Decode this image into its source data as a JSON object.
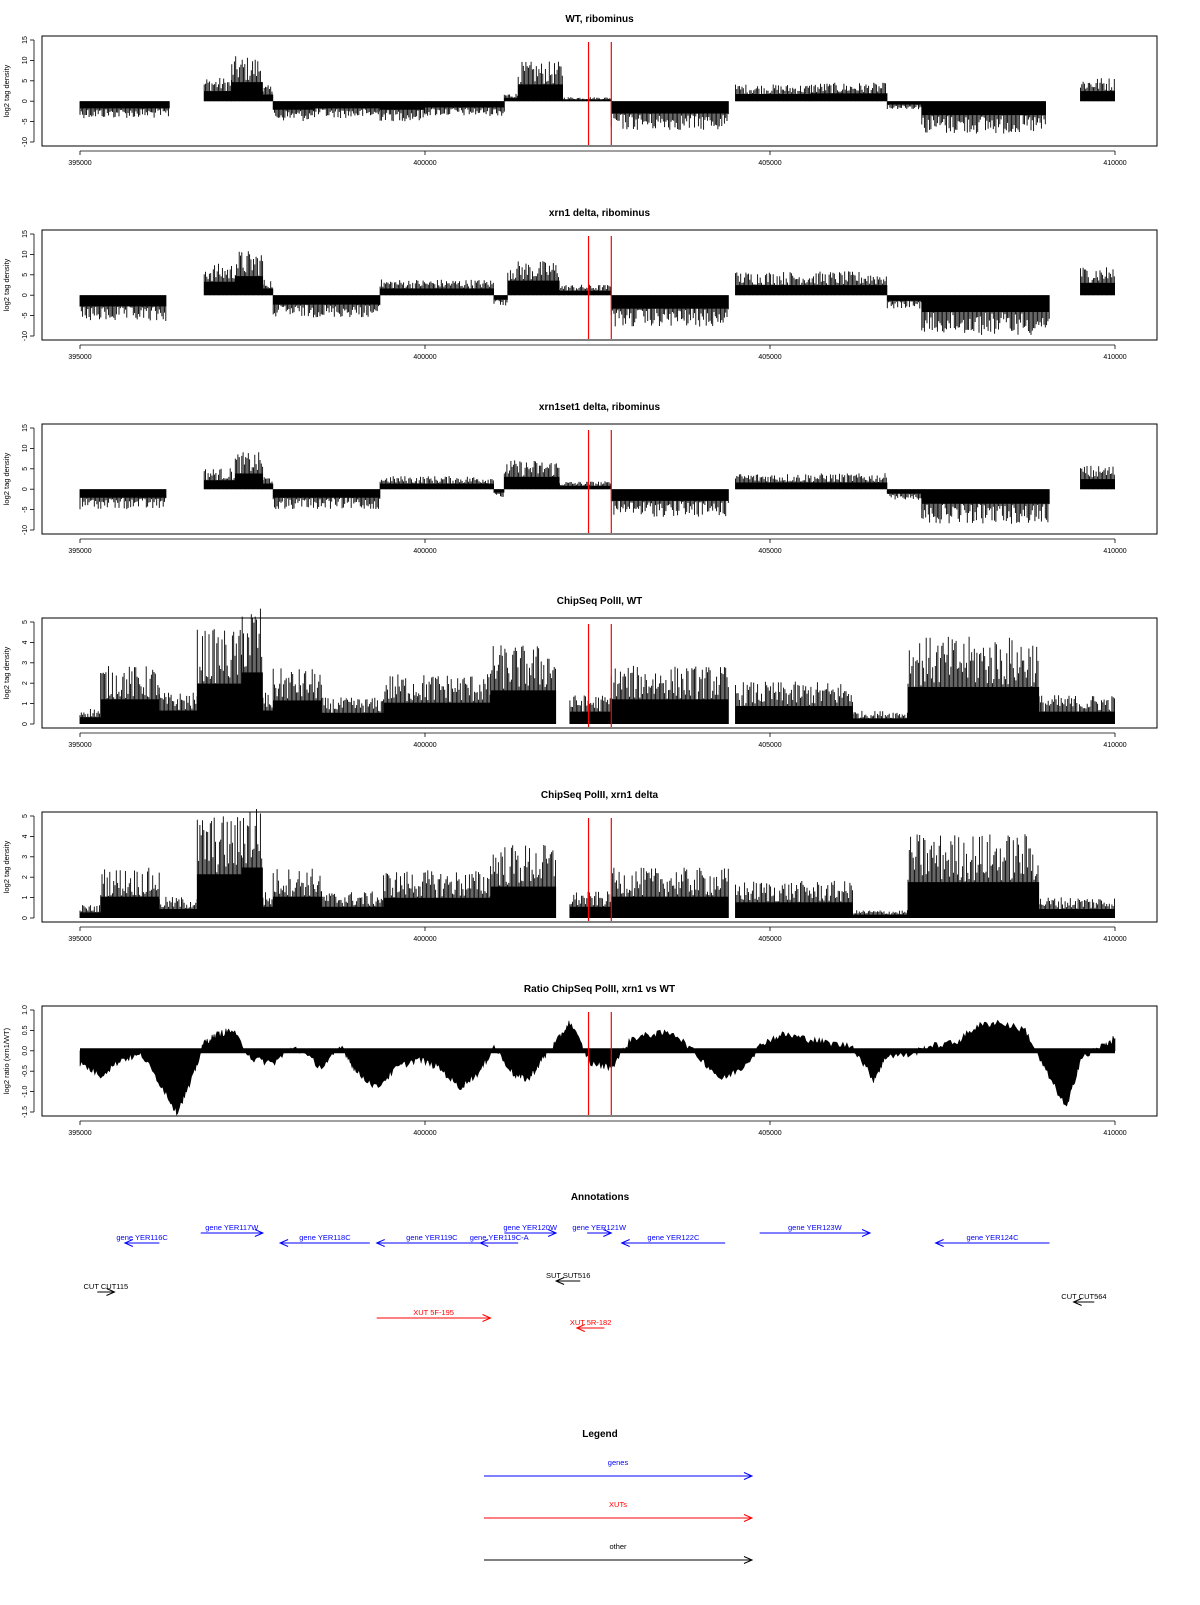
{
  "x_ticks": [
    "395000",
    "400000",
    "405000",
    "410000"
  ],
  "markers": {
    "color": "#ff0000",
    "positions": [
      402370,
      402700
    ]
  },
  "chart_data": [
    {
      "type": "bar",
      "title": "WT, ribominus",
      "ylabel": "log2 tag density",
      "xlim": [
        395000,
        410000
      ],
      "ylim": [
        -10,
        15
      ],
      "yticks": [
        "-10",
        "-5",
        "0",
        "5",
        "10",
        "15"
      ],
      "segments": [
        {
          "from": 395000,
          "to": 396300,
          "level": -3.2
        },
        {
          "from": 396300,
          "to": 396800,
          "level": 0
        },
        {
          "from": 396800,
          "to": 397200,
          "level": 4.5
        },
        {
          "from": 397200,
          "to": 397650,
          "level": 8.5
        },
        {
          "from": 397650,
          "to": 397800,
          "level": 3
        },
        {
          "from": 397800,
          "to": 398400,
          "level": -3.8
        },
        {
          "from": 398400,
          "to": 399350,
          "level": -3.2
        },
        {
          "from": 399350,
          "to": 400000,
          "level": -3.8
        },
        {
          "from": 400000,
          "to": 401150,
          "level": -2.8
        },
        {
          "from": 401150,
          "to": 401350,
          "level": 1.5
        },
        {
          "from": 401350,
          "to": 402000,
          "level": 7.5
        },
        {
          "from": 402000,
          "to": 402700,
          "level": 0.8
        },
        {
          "from": 402700,
          "to": 404400,
          "level": -5.5
        },
        {
          "from": 404400,
          "to": 404500,
          "level": 0
        },
        {
          "from": 404500,
          "to": 405600,
          "level": 3.2
        },
        {
          "from": 405600,
          "to": 406700,
          "level": 3.5
        },
        {
          "from": 406700,
          "to": 407200,
          "level": -1.5
        },
        {
          "from": 407200,
          "to": 409000,
          "level": -6.2
        },
        {
          "from": 409000,
          "to": 409500,
          "level": 0
        },
        {
          "from": 409500,
          "to": 410000,
          "level": 4.5
        }
      ]
    },
    {
      "type": "bar",
      "title": "xrn1 delta, ribominus",
      "ylabel": "log2 tag density",
      "xlim": [
        395000,
        410000
      ],
      "ylim": [
        -10,
        15
      ],
      "yticks": [
        "-10",
        "-5",
        "0",
        "5",
        "10",
        "15"
      ],
      "segments": [
        {
          "from": 395000,
          "to": 396250,
          "level": -5
        },
        {
          "from": 396250,
          "to": 396800,
          "level": 0
        },
        {
          "from": 396800,
          "to": 397250,
          "level": 6
        },
        {
          "from": 397250,
          "to": 397650,
          "level": 8.5
        },
        {
          "from": 397650,
          "to": 397800,
          "level": 3
        },
        {
          "from": 397800,
          "to": 399350,
          "level": -4.2
        },
        {
          "from": 399350,
          "to": 401000,
          "level": 3
        },
        {
          "from": 401000,
          "to": 401200,
          "level": -2
        },
        {
          "from": 401200,
          "to": 401950,
          "level": 6.5
        },
        {
          "from": 401950,
          "to": 402700,
          "level": 2
        },
        {
          "from": 402700,
          "to": 404400,
          "level": -6
        },
        {
          "from": 404400,
          "to": 404500,
          "level": 0
        },
        {
          "from": 404500,
          "to": 406700,
          "level": 4.5
        },
        {
          "from": 406700,
          "to": 407200,
          "level": -2.5
        },
        {
          "from": 407200,
          "to": 409050,
          "level": -7.5
        },
        {
          "from": 409050,
          "to": 409500,
          "level": 0
        },
        {
          "from": 409500,
          "to": 410000,
          "level": 5.5
        }
      ]
    },
    {
      "type": "bar",
      "title": "xrn1set1 delta, ribominus",
      "ylabel": "log2 tag density",
      "xlim": [
        395000,
        410000
      ],
      "ylim": [
        -10,
        15
      ],
      "yticks": [
        "-10",
        "-5",
        "0",
        "5",
        "10",
        "15"
      ],
      "segments": [
        {
          "from": 395000,
          "to": 396250,
          "level": -3.8
        },
        {
          "from": 396250,
          "to": 396800,
          "level": 0
        },
        {
          "from": 396800,
          "to": 397250,
          "level": 4
        },
        {
          "from": 397250,
          "to": 397650,
          "level": 7
        },
        {
          "from": 397650,
          "to": 397800,
          "level": 2.5
        },
        {
          "from": 397800,
          "to": 399350,
          "level": -3.8
        },
        {
          "from": 399350,
          "to": 401000,
          "level": 2.5
        },
        {
          "from": 401000,
          "to": 401150,
          "level": -1.5
        },
        {
          "from": 401150,
          "to": 401950,
          "level": 5.5
        },
        {
          "from": 401950,
          "to": 402700,
          "level": 1.5
        },
        {
          "from": 402700,
          "to": 404400,
          "level": -5.2
        },
        {
          "from": 404400,
          "to": 404500,
          "level": 0
        },
        {
          "from": 404500,
          "to": 406700,
          "level": 3
        },
        {
          "from": 406700,
          "to": 407200,
          "level": -2
        },
        {
          "from": 407200,
          "to": 409050,
          "level": -6.5
        },
        {
          "from": 409050,
          "to": 409500,
          "level": 0
        },
        {
          "from": 409500,
          "to": 410000,
          "level": 4.5
        }
      ]
    },
    {
      "type": "bar",
      "title": "ChipSeq PolII, WT",
      "ylabel": "log2 tag density",
      "xlim": [
        395000,
        410000
      ],
      "ylim": [
        0,
        5
      ],
      "yticks": [
        "0",
        "1",
        "2",
        "3",
        "4",
        "5"
      ],
      "segments": [
        {
          "from": 395000,
          "to": 395300,
          "level": 0.6
        },
        {
          "from": 395300,
          "to": 396150,
          "level": 2.2
        },
        {
          "from": 396150,
          "to": 396700,
          "level": 1.2
        },
        {
          "from": 396700,
          "to": 397350,
          "level": 3.6
        },
        {
          "from": 397350,
          "to": 397650,
          "level": 4.6
        },
        {
          "from": 397650,
          "to": 397800,
          "level": 1.2
        },
        {
          "from": 397800,
          "to": 398500,
          "level": 2.1
        },
        {
          "from": 398500,
          "to": 399400,
          "level": 1
        },
        {
          "from": 399400,
          "to": 400950,
          "level": 1.9
        },
        {
          "from": 400950,
          "to": 401900,
          "level": 3
        },
        {
          "from": 401900,
          "to": 402100,
          "level": 0
        },
        {
          "from": 402100,
          "to": 402700,
          "level": 1.1
        },
        {
          "from": 402700,
          "to": 404400,
          "level": 2.2
        },
        {
          "from": 404400,
          "to": 404500,
          "level": 0
        },
        {
          "from": 404500,
          "to": 406200,
          "level": 1.6
        },
        {
          "from": 406200,
          "to": 407000,
          "level": 0.5
        },
        {
          "from": 407000,
          "to": 408900,
          "level": 3.3
        },
        {
          "from": 408900,
          "to": 410000,
          "level": 1.1
        }
      ]
    },
    {
      "type": "bar",
      "title": "ChipSeq PolII, xrn1 delta",
      "ylabel": "log2 tag density",
      "xlim": [
        395000,
        410000
      ],
      "ylim": [
        0,
        5
      ],
      "yticks": [
        "0",
        "1",
        "2",
        "3",
        "4",
        "5"
      ],
      "segments": [
        {
          "from": 395000,
          "to": 395300,
          "level": 0.5
        },
        {
          "from": 395300,
          "to": 396150,
          "level": 1.9
        },
        {
          "from": 396150,
          "to": 396700,
          "level": 0.8
        },
        {
          "from": 396700,
          "to": 397350,
          "level": 3.9
        },
        {
          "from": 397350,
          "to": 397650,
          "level": 4.5
        },
        {
          "from": 397650,
          "to": 397800,
          "level": 1
        },
        {
          "from": 397800,
          "to": 398500,
          "level": 1.9
        },
        {
          "from": 398500,
          "to": 399400,
          "level": 1
        },
        {
          "from": 399400,
          "to": 400950,
          "level": 1.8
        },
        {
          "from": 400950,
          "to": 401900,
          "level": 2.8
        },
        {
          "from": 401900,
          "to": 402100,
          "level": 0
        },
        {
          "from": 402100,
          "to": 402700,
          "level": 1
        },
        {
          "from": 402700,
          "to": 404400,
          "level": 1.9
        },
        {
          "from": 404400,
          "to": 404500,
          "level": 0
        },
        {
          "from": 404500,
          "to": 406200,
          "level": 1.4
        },
        {
          "from": 406200,
          "to": 407000,
          "level": 0.3
        },
        {
          "from": 407000,
          "to": 408900,
          "level": 3.2
        },
        {
          "from": 408900,
          "to": 410000,
          "level": 0.8
        }
      ]
    },
    {
      "type": "area",
      "title": "Ratio ChipSeq PolII, xrn1 vs WT",
      "ylabel": "log2 ratio (xrn1/WT)",
      "xlim": [
        395000,
        410000
      ],
      "ylim": [
        -1.5,
        1
      ],
      "yticks": [
        "-1.5",
        "-1.0",
        "-0.5",
        "0.0",
        "0.5",
        "1.0"
      ],
      "x": [
        395000,
        395300,
        395600,
        395900,
        396200,
        396400,
        396600,
        396800,
        397000,
        397200,
        397500,
        397800,
        398100,
        398500,
        398800,
        399000,
        399300,
        399600,
        399900,
        400200,
        400500,
        400800,
        401000,
        401300,
        401500,
        401700,
        401900,
        402100,
        402400,
        402700,
        403000,
        403300,
        403600,
        404000,
        404300,
        404600,
        404900,
        405200,
        405500,
        405800,
        406200,
        406500,
        406700,
        407000,
        407300,
        407700,
        408000,
        408300,
        408700,
        409000,
        409300,
        409500,
        409800,
        410000
      ],
      "y": [
        -0.3,
        -0.6,
        -0.2,
        -0.1,
        -0.9,
        -1.5,
        -0.8,
        0.2,
        0.4,
        0.5,
        -0.2,
        -0.3,
        0.1,
        -0.4,
        0.1,
        -0.5,
        -0.9,
        -0.4,
        -0.2,
        -0.4,
        -0.9,
        -0.5,
        0.1,
        -0.6,
        -0.7,
        -0.2,
        0.2,
        0.7,
        -0.3,
        -0.4,
        0.3,
        0.4,
        0.45,
        -0.2,
        -0.7,
        -0.4,
        0.2,
        0.4,
        0.3,
        0.2,
        0.1,
        -0.7,
        -0.1,
        -0.1,
        0.1,
        0.2,
        0.6,
        0.7,
        0.5,
        -0.5,
        -1.4,
        -0.2,
        0.1,
        0.3
      ]
    }
  ],
  "annotations": {
    "title": "Annotations",
    "items": [
      {
        "label": "gene YER116C",
        "start": 395650,
        "end": 396150,
        "dir": "left",
        "row": 2,
        "kind": "gene",
        "color": "#0000ff"
      },
      {
        "label": "gene YER117W",
        "start": 396750,
        "end": 397650,
        "dir": "right",
        "row": 1,
        "kind": "gene",
        "color": "#0000ff"
      },
      {
        "label": "gene YER118C",
        "start": 397900,
        "end": 399200,
        "dir": "left",
        "row": 2,
        "kind": "gene",
        "color": "#0000ff"
      },
      {
        "label": "gene YER119C",
        "start": 399300,
        "end": 400900,
        "dir": "left",
        "row": 2,
        "kind": "gene",
        "color": "#0000ff"
      },
      {
        "label": "gene YER119C-A",
        "start": 400800,
        "end": 401350,
        "dir": "left",
        "row": 2,
        "kind": "gene",
        "color": "#0000ff"
      },
      {
        "label": "gene YER120W",
        "start": 401150,
        "end": 401900,
        "dir": "right",
        "row": 1,
        "kind": "gene",
        "color": "#0000ff"
      },
      {
        "label": "gene YER121W",
        "start": 402350,
        "end": 402700,
        "dir": "right",
        "row": 1,
        "kind": "gene",
        "color": "#0000ff"
      },
      {
        "label": "gene YER122C",
        "start": 402850,
        "end": 404350,
        "dir": "left",
        "row": 2,
        "kind": "gene",
        "color": "#0000ff"
      },
      {
        "label": "gene YER123W",
        "start": 404850,
        "end": 406450,
        "dir": "right",
        "row": 1,
        "kind": "gene",
        "color": "#0000ff"
      },
      {
        "label": "gene YER124C",
        "start": 407400,
        "end": 409050,
        "dir": "left",
        "row": 2,
        "kind": "gene",
        "color": "#0000ff"
      },
      {
        "label": "CUT CUT115",
        "start": 395250,
        "end": 395500,
        "dir": "right",
        "row": 3,
        "kind": "other",
        "color": "#000000"
      },
      {
        "label": "SUT SUT516",
        "start": 401900,
        "end": 402250,
        "dir": "left",
        "row": 4,
        "kind": "other",
        "color": "#000000"
      },
      {
        "label": "CUT CUT564",
        "start": 409400,
        "end": 409700,
        "dir": "left",
        "row": 5,
        "kind": "other",
        "color": "#000000"
      },
      {
        "label": "XUT 5F-195",
        "start": 399300,
        "end": 400950,
        "dir": "right",
        "row": 6,
        "kind": "xut",
        "color": "#ff0000"
      },
      {
        "label": "XUT 5R-182",
        "start": 402200,
        "end": 402600,
        "dir": "left",
        "row": 7,
        "kind": "xut",
        "color": "#ff0000"
      }
    ]
  },
  "legend": {
    "title": "Legend",
    "items": [
      {
        "label": "genes",
        "color": "#0000ff"
      },
      {
        "label": "XUTs",
        "color": "#ff0000"
      },
      {
        "label": "other",
        "color": "#000000"
      }
    ]
  }
}
